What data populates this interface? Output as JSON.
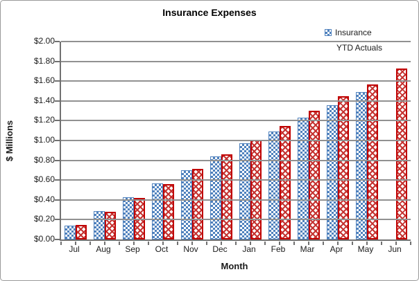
{
  "chart": {
    "title": "Insurance Expenses",
    "x_axis_title": "Month",
    "y_axis_title": "$ Millions",
    "y_ticks": [
      "$0.00",
      "$0.20",
      "$0.40",
      "$0.60",
      "$0.80",
      "$1.00",
      "$1.20",
      "$1.40",
      "$1.60",
      "$1.80",
      "$2.00"
    ],
    "legend": {
      "line1": "Insurance",
      "line2": "YTD Actuals",
      "marker_icon": "blue-checker-swatch"
    },
    "colors": {
      "insurance_blue": "#4F81BD",
      "ytd_red": "#C53331",
      "red_border": "#C00000",
      "gridline_gray": "#919191",
      "axis_gray": "#707070"
    }
  },
  "chart_data": {
    "type": "bar",
    "title": "Insurance Expenses",
    "xlabel": "Month",
    "ylabel": "$ Millions",
    "ylim": [
      0,
      2.0
    ],
    "ytick_step": 0.2,
    "grid": true,
    "legend_position": "top-right",
    "categories": [
      "Jul",
      "Aug",
      "Sep",
      "Oct",
      "Nov",
      "Dec",
      "Jan",
      "Feb",
      "Mar",
      "Apr",
      "May",
      "Jun"
    ],
    "series": [
      {
        "name": "Insurance",
        "pattern": "checkerboard",
        "color": "#4F81BD",
        "values": [
          0.14,
          0.29,
          0.43,
          0.57,
          0.7,
          0.84,
          0.97,
          1.09,
          1.23,
          1.36,
          1.49,
          null
        ]
      },
      {
        "name": "YTD Actuals",
        "pattern": "diagonal-lattice",
        "color": "#C53331",
        "values": [
          0.15,
          0.28,
          0.42,
          0.56,
          0.71,
          0.86,
          1.01,
          1.15,
          1.3,
          1.45,
          1.57,
          1.73
        ]
      }
    ]
  }
}
